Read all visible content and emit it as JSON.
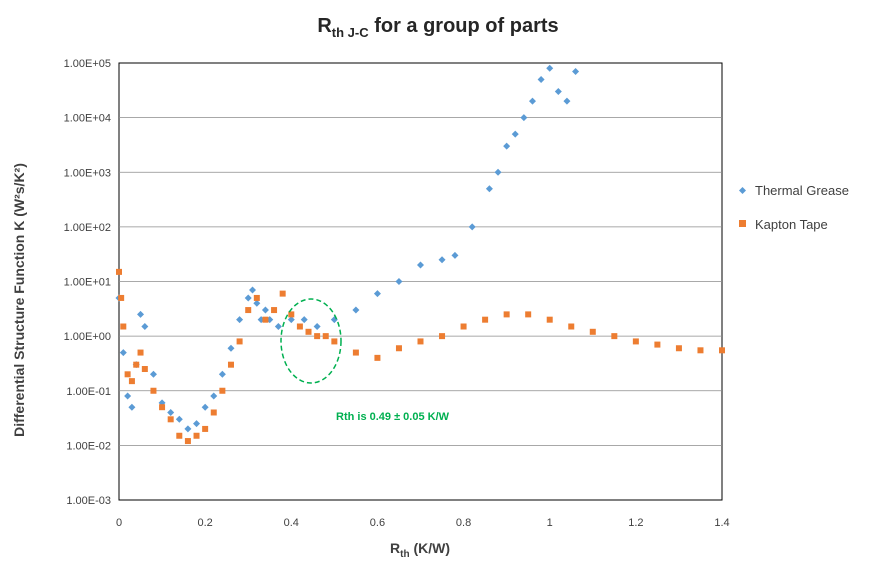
{
  "chart_data": {
    "type": "scatter",
    "title_main": "R",
    "title_sub": "th J-C",
    "title_rest": " for a group of parts",
    "xlabel_main": "R",
    "xlabel_sub": "th",
    "xlabel_rest": " (K/W)",
    "ylabel": "Differential Structure Function  K (W²s/K²)",
    "x_scale": "linear",
    "y_scale": "log",
    "xlim": [
      0,
      1.4
    ],
    "ylim": [
      0.001,
      100000
    ],
    "x_ticks": [
      "0",
      "0.2",
      "0.4",
      "0.6",
      "0.8",
      "1",
      "1.2",
      "1.4"
    ],
    "y_ticks": [
      "1.00E-03",
      "1.00E-02",
      "1.00E-01",
      "1.00E+00",
      "1.00E+01",
      "1.00E+02",
      "1.00E+03",
      "1.00E+04",
      "1.00E+05"
    ],
    "grid": "horizontal",
    "legend_position": "right",
    "series": [
      {
        "name": "Thermal Grease",
        "color": "#5B9BD5",
        "marker": "diamond",
        "x": [
          0.0,
          0.01,
          0.02,
          0.03,
          0.04,
          0.05,
          0.06,
          0.08,
          0.1,
          0.12,
          0.14,
          0.16,
          0.18,
          0.2,
          0.22,
          0.24,
          0.26,
          0.28,
          0.3,
          0.31,
          0.32,
          0.33,
          0.34,
          0.35,
          0.37,
          0.4,
          0.43,
          0.46,
          0.5,
          0.55,
          0.6,
          0.65,
          0.7,
          0.75,
          0.78,
          0.82,
          0.86,
          0.88,
          0.9,
          0.92,
          0.94,
          0.96,
          0.98,
          1.0,
          1.02,
          1.04,
          1.06
        ],
        "y": [
          5,
          0.5,
          0.08,
          0.05,
          0.3,
          2.5,
          1.5,
          0.2,
          0.06,
          0.04,
          0.03,
          0.02,
          0.025,
          0.05,
          0.08,
          0.2,
          0.6,
          2,
          5,
          7,
          4,
          2,
          3,
          2,
          1.5,
          2,
          2,
          1.5,
          2,
          3,
          6,
          10,
          20,
          25,
          30,
          100,
          500,
          1000,
          3000,
          5000,
          10000,
          20000,
          50000,
          80000,
          30000,
          20000,
          70000
        ]
      },
      {
        "name": "Kapton Tape",
        "color": "#ED7D31",
        "marker": "square",
        "x": [
          0.0,
          0.005,
          0.01,
          0.02,
          0.03,
          0.04,
          0.05,
          0.06,
          0.08,
          0.1,
          0.12,
          0.14,
          0.16,
          0.18,
          0.2,
          0.22,
          0.24,
          0.26,
          0.28,
          0.3,
          0.32,
          0.34,
          0.36,
          0.38,
          0.4,
          0.42,
          0.44,
          0.46,
          0.48,
          0.5,
          0.55,
          0.6,
          0.65,
          0.7,
          0.75,
          0.8,
          0.85,
          0.9,
          0.95,
          1.0,
          1.05,
          1.1,
          1.15,
          1.2,
          1.25,
          1.3,
          1.35,
          1.4
        ],
        "y": [
          15,
          5,
          1.5,
          0.2,
          0.15,
          0.3,
          0.5,
          0.25,
          0.1,
          0.05,
          0.03,
          0.015,
          0.012,
          0.015,
          0.02,
          0.04,
          0.1,
          0.3,
          0.8,
          3,
          5,
          2,
          3,
          6,
          2.5,
          1.5,
          1.2,
          1,
          1,
          0.8,
          0.5,
          0.4,
          0.6,
          0.8,
          1,
          1.5,
          2,
          2.5,
          2.5,
          2,
          1.5,
          1.2,
          1,
          0.8,
          0.7,
          0.6,
          0.55,
          0.55
        ]
      }
    ],
    "annotation": {
      "text": "Rth is 0.49 ± 0.05 K/W",
      "color": "#00B050",
      "x": 0.56,
      "y": 0.01
    }
  }
}
